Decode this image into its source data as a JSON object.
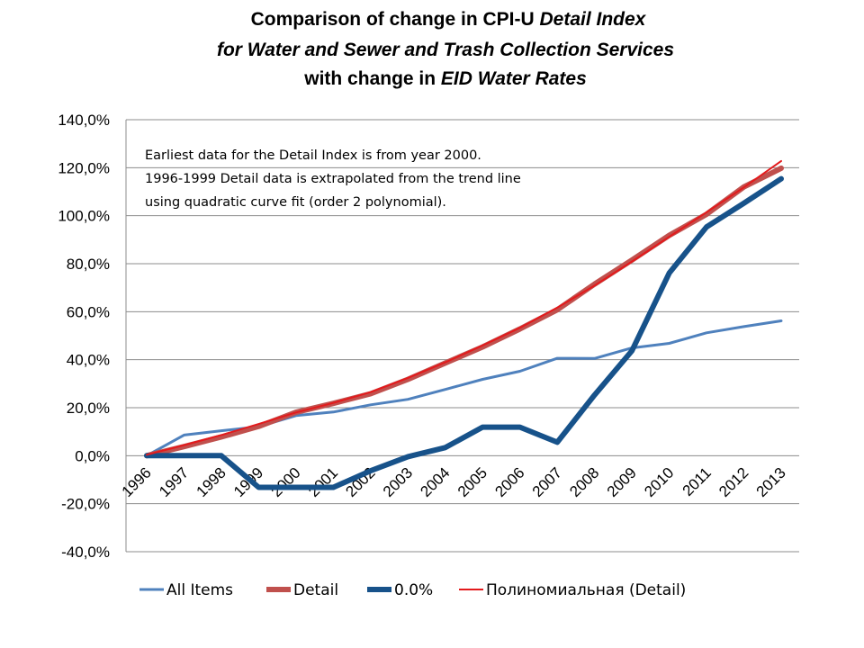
{
  "title": {
    "line1_a": "Comparison of  change in CPI-U ",
    "line1_b": "Detail Index",
    "line2": "for Water and Sewer and Trash Collection Services",
    "line3_a": "with change in ",
    "line3_b": "EID Water Rates"
  },
  "annotation": [
    "Earliest data for the Detail Index is from year 2000.",
    "1996-1999 Detail data is extrapolated from the trend line",
    "using quadratic curve fit (order 2 polynomial)."
  ],
  "colors": {
    "all_items": "#4F81BD",
    "detail": "#C0504D",
    "zero": "#17528A",
    "poly": "#E31A1C",
    "grid": "#8C8C8C"
  },
  "chart_data": {
    "type": "line",
    "categories": [
      "1996",
      "1997",
      "1998",
      "1999",
      "2000",
      "2001",
      "2002",
      "2003",
      "2004",
      "2005",
      "2006",
      "2007",
      "2008",
      "2009",
      "2010",
      "2011",
      "2012",
      "2013"
    ],
    "ylim": [
      -40,
      140
    ],
    "yticks": [
      -40,
      -20,
      0,
      20,
      40,
      60,
      80,
      100,
      120,
      140
    ],
    "ytick_labels": [
      "-40,0%",
      "-20,0%",
      "0,0%",
      "20,0%",
      "40,0%",
      "60,0%",
      "80,0%",
      "100,0%",
      "120,0%",
      "140,0%"
    ],
    "grid": true,
    "legend_position": "bottom",
    "series": [
      {
        "name": "All Items",
        "color_key": "all_items",
        "width": 3,
        "values": [
          0,
          8.6,
          10.4,
          12.1,
          16.7,
          18.2,
          21.2,
          23.5,
          27.6,
          31.8,
          35.2,
          40.6,
          40.5,
          44.9,
          46.8,
          51.2,
          53.8,
          56.2
        ]
      },
      {
        "name": "Detail",
        "color_key": "detail",
        "width": 6,
        "values": [
          0,
          3.8,
          7.8,
          12.2,
          18.1,
          21.8,
          25.8,
          31.8,
          38.6,
          45.3,
          52.8,
          60.8,
          71.5,
          81.5,
          91.8,
          100.6,
          112.0,
          119.8
        ]
      },
      {
        "name": "0.0%",
        "color_key": "zero",
        "width": 6,
        "values": [
          0,
          0,
          0,
          -13.2,
          -13.2,
          -13.2,
          -6.3,
          -0.4,
          3.4,
          11.9,
          11.9,
          5.6,
          25.3,
          43.7,
          76.1,
          95.3,
          105.2,
          115.4
        ]
      },
      {
        "name": "Полиномиальная (Detail)",
        "color_key": "poly",
        "width": 2,
        "values": [
          0.4,
          4.4,
          8.6,
          13.2,
          18.0,
          22.0,
          26.5,
          32.4,
          38.9,
          45.9,
          53.3,
          61.7,
          70.9,
          80.9,
          91.2,
          101.4,
          111.8,
          122.8
        ]
      }
    ]
  },
  "legend": [
    {
      "label": "All Items",
      "color_key": "all_items",
      "width": 3
    },
    {
      "label": "Detail",
      "color_key": "detail",
      "width": 6
    },
    {
      "label": "0.0%",
      "color_key": "zero",
      "width": 6
    },
    {
      "label": "Полиномиальная (Detail)",
      "color_key": "poly",
      "width": 2
    }
  ]
}
